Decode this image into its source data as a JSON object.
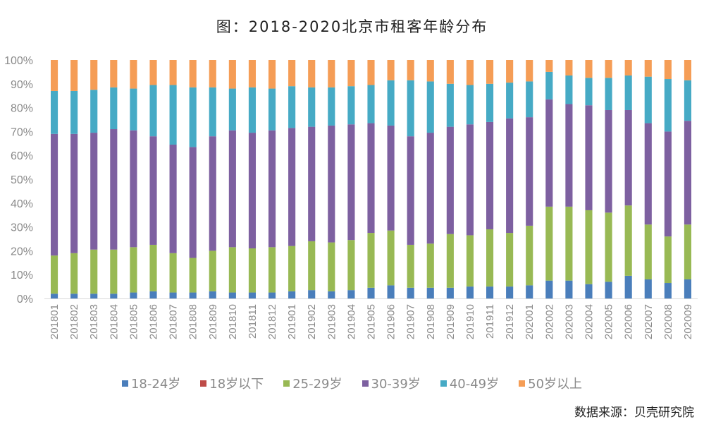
{
  "chart_data": {
    "type": "bar",
    "stacked": true,
    "percent_stacked": true,
    "title": "图：2018-2020北京市租客年龄分布",
    "xlabel": "",
    "ylabel": "",
    "ylim": [
      0,
      100
    ],
    "yticks": [
      "0%",
      "10%",
      "20%",
      "30%",
      "40%",
      "50%",
      "60%",
      "70%",
      "80%",
      "90%",
      "100%"
    ],
    "grid": false,
    "legend_position": "bottom",
    "categories": [
      "201801",
      "201802",
      "201803",
      "201804",
      "201805",
      "201806",
      "201807",
      "201808",
      "201809",
      "201810",
      "201811",
      "201812",
      "201901",
      "201902",
      "201903",
      "201904",
      "201905",
      "201906",
      "201907",
      "201908",
      "201909",
      "201910",
      "201911",
      "201912",
      "202001",
      "202002",
      "202003",
      "202004",
      "202005",
      "202006",
      "202007",
      "202008",
      "202009"
    ],
    "series": [
      {
        "name": "18-24岁",
        "color": "#4a7ebb",
        "values": [
          2,
          2,
          2,
          2,
          2.5,
          3,
          2.5,
          2.5,
          3,
          2.5,
          2.5,
          2.5,
          3,
          3.5,
          3,
          3.5,
          4.5,
          5.5,
          4.5,
          4.5,
          4.5,
          5,
          5,
          5,
          5.5,
          7.5,
          7.5,
          6,
          7,
          9.5,
          8,
          6.5,
          8
        ]
      },
      {
        "name": "18岁以下",
        "color": "#be4b48",
        "values": [
          0,
          0,
          0,
          0,
          0,
          0,
          0,
          0,
          0,
          0,
          0,
          0,
          0,
          0,
          0,
          0,
          0,
          0,
          0,
          0,
          0,
          0,
          0,
          0,
          0,
          0,
          0,
          0,
          0,
          0,
          0,
          0,
          0
        ]
      },
      {
        "name": "25-29岁",
        "color": "#98b954",
        "values": [
          16,
          17,
          18.5,
          18.5,
          19,
          19.5,
          16.5,
          14.5,
          17,
          19,
          18.5,
          19,
          19,
          20.5,
          20.5,
          21,
          23,
          23,
          18,
          18.5,
          22.5,
          21.5,
          24,
          22.5,
          25,
          31,
          31,
          31,
          29,
          29.5,
          23,
          19.5,
          23
        ]
      },
      {
        "name": "30-39岁",
        "color": "#7d60a0",
        "values": [
          51,
          50,
          49,
          50.5,
          49,
          45.5,
          45.5,
          46.5,
          48,
          49,
          48.5,
          49,
          49.5,
          48,
          49,
          48.5,
          46,
          44,
          45.5,
          46.5,
          45,
          46.5,
          45,
          48,
          45.5,
          45,
          43,
          44,
          43,
          40,
          42.5,
          44,
          43.5
        ]
      },
      {
        "name": "40-49岁",
        "color": "#46aac5",
        "values": [
          18,
          18,
          18,
          17.5,
          17.5,
          21.5,
          25,
          25,
          20.5,
          17.5,
          19,
          17.5,
          17.5,
          16.5,
          16,
          16,
          16,
          19,
          23.5,
          21.5,
          18,
          16.5,
          16,
          15,
          15,
          11.5,
          12,
          11.5,
          13.5,
          14.5,
          19.5,
          22,
          17
        ]
      },
      {
        "name": "50岁以上",
        "color": "#f59d56",
        "values": [
          13,
          13,
          12.5,
          11.5,
          12,
          10.5,
          10.5,
          11.5,
          11.5,
          12,
          11.5,
          12,
          11,
          11.5,
          11.5,
          11,
          10.5,
          8.5,
          8.5,
          9,
          10,
          10.5,
          10,
          9.5,
          9,
          5,
          6.5,
          7.5,
          7.5,
          6.5,
          7,
          8,
          8.5
        ]
      }
    ]
  },
  "source_note": "数据来源：贝壳研究院"
}
